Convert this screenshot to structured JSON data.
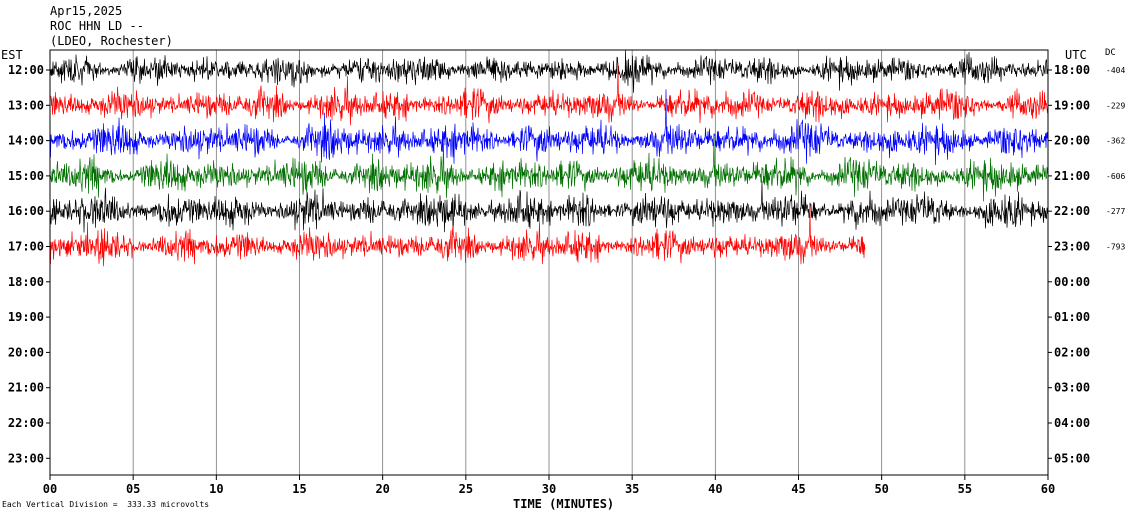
{
  "header": {
    "date": "Apr15,2025",
    "station": "ROC HHN LD --",
    "network": "(LDEO, Rochester)"
  },
  "left_axis_title": "EST",
  "right_axis_title": "UTC",
  "dc_title": "DC",
  "footer_note": "Each Vertical Division =  333.33 microvolts",
  "x_axis_label": "TIME (MINUTES)",
  "chart_data": {
    "type": "line",
    "title": "Apr15,2025 ROC HHN LD -- (LDEO, Rochester)",
    "xlabel": "TIME (MINUTES)",
    "ylabel_left": "EST",
    "ylabel_right": "UTC",
    "xlim": [
      0,
      60
    ],
    "x_ticks": [
      "00",
      "05",
      "10",
      "15",
      "20",
      "25",
      "30",
      "35",
      "40",
      "45",
      "50",
      "55",
      "60"
    ],
    "rows_est": [
      "12:00",
      "13:00",
      "14:00",
      "15:00",
      "16:00",
      "17:00",
      "18:00",
      "19:00",
      "20:00",
      "21:00",
      "22:00",
      "23:00"
    ],
    "rows_utc": [
      "18:00",
      "19:00",
      "20:00",
      "21:00",
      "22:00",
      "23:00",
      "00:00",
      "01:00",
      "02:00",
      "03:00",
      "04:00",
      "05:00"
    ],
    "dc_offsets": [
      "-404",
      "-229",
      "-362",
      "-606",
      "-277",
      "-793"
    ],
    "vertical_division": "333.33 microvolts",
    "grid": "vertical lines every 5 minutes",
    "colors": [
      "#000000",
      "#ff0000",
      "#0000ff",
      "#007000"
    ],
    "traces": [
      {
        "row": 0,
        "color": "#000000",
        "start_min": 0,
        "end_min": 60,
        "amplitude": 9
      },
      {
        "row": 1,
        "color": "#ff0000",
        "start_min": 0,
        "end_min": 60,
        "amplitude": 10
      },
      {
        "row": 2,
        "color": "#0000ff",
        "start_min": 0,
        "end_min": 60,
        "amplitude": 11
      },
      {
        "row": 3,
        "color": "#007000",
        "start_min": 0,
        "end_min": 60,
        "amplitude": 11
      },
      {
        "row": 4,
        "color": "#000000",
        "start_min": 0,
        "end_min": 60,
        "amplitude": 11
      },
      {
        "row": 5,
        "color": "#ff0000",
        "start_min": 0,
        "end_min": 49,
        "amplitude": 10
      }
    ]
  }
}
